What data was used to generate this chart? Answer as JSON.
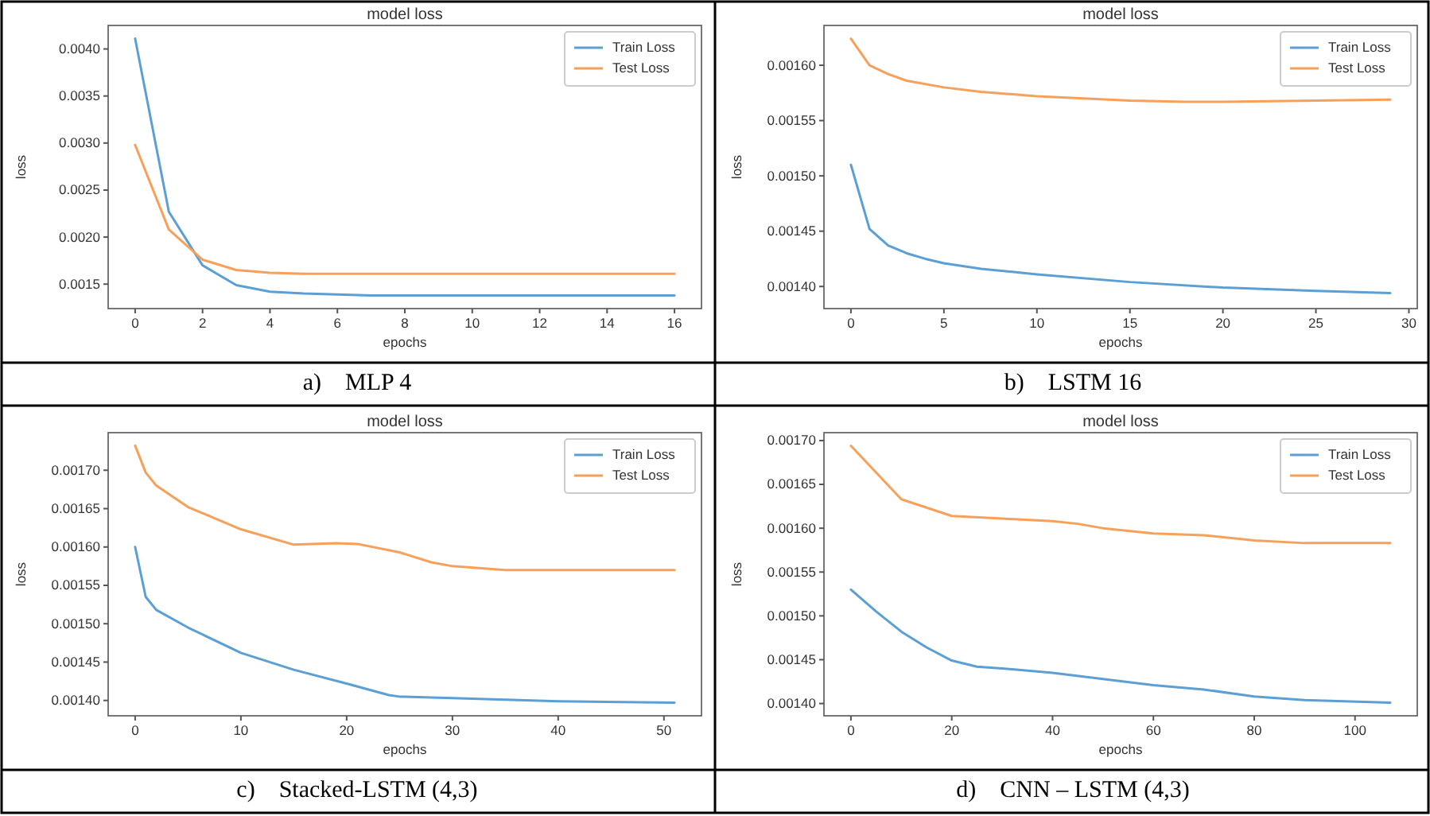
{
  "chart_data": [
    {
      "type": "line",
      "title": "model loss",
      "xlabel": "epochs",
      "ylabel": "loss",
      "legend": "top right",
      "xlim": [
        -0.8,
        16.8
      ],
      "xticks": [
        0,
        2,
        4,
        6,
        8,
        10,
        12,
        14,
        16
      ],
      "ylim": [
        0.00124,
        0.00425
      ],
      "yticks": [
        {
          "value": 0.0015,
          "label": "0.0015"
        },
        {
          "value": 0.002,
          "label": "0.0020"
        },
        {
          "value": 0.0025,
          "label": "0.0025"
        },
        {
          "value": 0.003,
          "label": "0.0030"
        },
        {
          "value": 0.0035,
          "label": "0.0035"
        },
        {
          "value": 0.004,
          "label": "0.0040"
        }
      ],
      "annotations": [
        "a)    MLP 4"
      ],
      "series": [
        {
          "name": "Train Loss",
          "color": "#5b9fd4",
          "x": [
            0,
            1,
            2,
            3,
            4,
            5,
            6,
            7,
            8,
            9,
            10,
            11,
            12,
            13,
            14,
            15,
            16
          ],
          "values": [
            0.00411,
            0.00227,
            0.0017,
            0.00149,
            0.00142,
            0.0014,
            0.00139,
            0.00138,
            0.00138,
            0.00138,
            0.00138,
            0.00138,
            0.00138,
            0.00138,
            0.00138,
            0.00138,
            0.00138
          ]
        },
        {
          "name": "Test Loss",
          "color": "#f7a05a",
          "x": [
            0,
            1,
            2,
            3,
            4,
            5,
            6,
            7,
            8,
            9,
            10,
            11,
            12,
            13,
            14,
            15,
            16
          ],
          "values": [
            0.00298,
            0.00208,
            0.00176,
            0.00165,
            0.00162,
            0.00161,
            0.00161,
            0.00161,
            0.00161,
            0.00161,
            0.00161,
            0.00161,
            0.00161,
            0.00161,
            0.00161,
            0.00161,
            0.00161
          ]
        }
      ]
    },
    {
      "type": "line",
      "title": "model loss",
      "xlabel": "epochs",
      "ylabel": "loss",
      "legend": "top right",
      "xlim": [
        -1.45,
        30.45
      ],
      "xticks": [
        0,
        5,
        10,
        15,
        20,
        25,
        30
      ],
      "ylim": [
        0.00138,
        0.001636
      ],
      "yticks": [
        {
          "value": 0.0014,
          "label": "0.00140"
        },
        {
          "value": 0.00145,
          "label": "0.00145"
        },
        {
          "value": 0.0015,
          "label": "0.00150"
        },
        {
          "value": 0.00155,
          "label": "0.00155"
        },
        {
          "value": 0.0016,
          "label": "0.00160"
        }
      ],
      "annotations": [
        "b)    LSTM 16"
      ],
      "series": [
        {
          "name": "Train Loss",
          "color": "#5b9fd4",
          "x": [
            0,
            1,
            2,
            3,
            4,
            5,
            7,
            10,
            15,
            20,
            25,
            29
          ],
          "values": [
            0.00151,
            0.001452,
            0.001437,
            0.00143,
            0.001425,
            0.001421,
            0.001416,
            0.001411,
            0.001404,
            0.001399,
            0.001396,
            0.001394
          ]
        },
        {
          "name": "Test Loss",
          "color": "#f7a05a",
          "x": [
            0,
            1,
            2,
            3,
            5,
            7,
            10,
            15,
            18,
            20,
            25,
            29
          ],
          "values": [
            0.001624,
            0.0016,
            0.001592,
            0.001586,
            0.00158,
            0.001576,
            0.001572,
            0.001568,
            0.001567,
            0.001567,
            0.001568,
            0.001569
          ]
        }
      ]
    },
    {
      "type": "line",
      "title": "model loss",
      "xlabel": "epochs",
      "ylabel": "loss",
      "legend": "top right",
      "xlim": [
        -2.55,
        53.55
      ],
      "xticks": [
        0,
        10,
        20,
        30,
        40,
        50
      ],
      "ylim": [
        0.00138,
        0.001749
      ],
      "yticks": [
        {
          "value": 0.0014,
          "label": "0.00140"
        },
        {
          "value": 0.00145,
          "label": "0.00145"
        },
        {
          "value": 0.0015,
          "label": "0.00150"
        },
        {
          "value": 0.00155,
          "label": "0.00155"
        },
        {
          "value": 0.0016,
          "label": "0.00160"
        },
        {
          "value": 0.00165,
          "label": "0.00165"
        },
        {
          "value": 0.0017,
          "label": "0.00170"
        }
      ],
      "annotations": [
        "c)    Stacked-LSTM (4,3)"
      ],
      "series": [
        {
          "name": "Train Loss",
          "color": "#5b9fd4",
          "x": [
            0,
            1,
            2,
            5,
            10,
            15,
            20,
            24,
            25,
            30,
            40,
            51
          ],
          "values": [
            0.0016,
            0.001535,
            0.001518,
            0.001495,
            0.001462,
            0.00144,
            0.001422,
            0.001407,
            0.001405,
            0.001403,
            0.001399,
            0.001397
          ]
        },
        {
          "name": "Test Loss",
          "color": "#f7a05a",
          "x": [
            0,
            1,
            2,
            5,
            10,
            15,
            19,
            21,
            25,
            28,
            30,
            35,
            51
          ],
          "values": [
            0.001732,
            0.001697,
            0.00168,
            0.001652,
            0.001623,
            0.001603,
            0.001605,
            0.001604,
            0.001593,
            0.00158,
            0.001575,
            0.00157,
            0.00157
          ]
        }
      ]
    },
    {
      "type": "line",
      "title": "model loss",
      "xlabel": "epochs",
      "ylabel": "loss",
      "legend": "top right",
      "xlim": [
        -5.35,
        112.35
      ],
      "xticks": [
        0,
        20,
        40,
        60,
        80,
        100
      ],
      "ylim": [
        0.001386,
        0.001709
      ],
      "yticks": [
        {
          "value": 0.0014,
          "label": "0.00140"
        },
        {
          "value": 0.00145,
          "label": "0.00145"
        },
        {
          "value": 0.0015,
          "label": "0.00150"
        },
        {
          "value": 0.00155,
          "label": "0.00155"
        },
        {
          "value": 0.0016,
          "label": "0.00160"
        },
        {
          "value": 0.00165,
          "label": "0.00165"
        },
        {
          "value": 0.0017,
          "label": "0.00170"
        }
      ],
      "annotations": [
        "d)    CNN – LSTM (4,3)"
      ],
      "series": [
        {
          "name": "Train Loss",
          "color": "#5b9fd4",
          "x": [
            0,
            5,
            10,
            15,
            20,
            25,
            30,
            40,
            50,
            60,
            70,
            80,
            90,
            107
          ],
          "values": [
            0.00153,
            0.001505,
            0.001482,
            0.001464,
            0.001449,
            0.001442,
            0.00144,
            0.001435,
            0.001428,
            0.001421,
            0.001416,
            0.001408,
            0.001404,
            0.001401
          ]
        },
        {
          "name": "Test Loss",
          "color": "#f7a05a",
          "x": [
            0,
            10,
            20,
            30,
            40,
            45,
            50,
            60,
            70,
            80,
            90,
            107
          ],
          "values": [
            0.001694,
            0.001633,
            0.001614,
            0.001611,
            0.001608,
            0.001605,
            0.0016,
            0.001594,
            0.001592,
            0.001586,
            0.001583,
            0.001583
          ]
        }
      ]
    }
  ]
}
